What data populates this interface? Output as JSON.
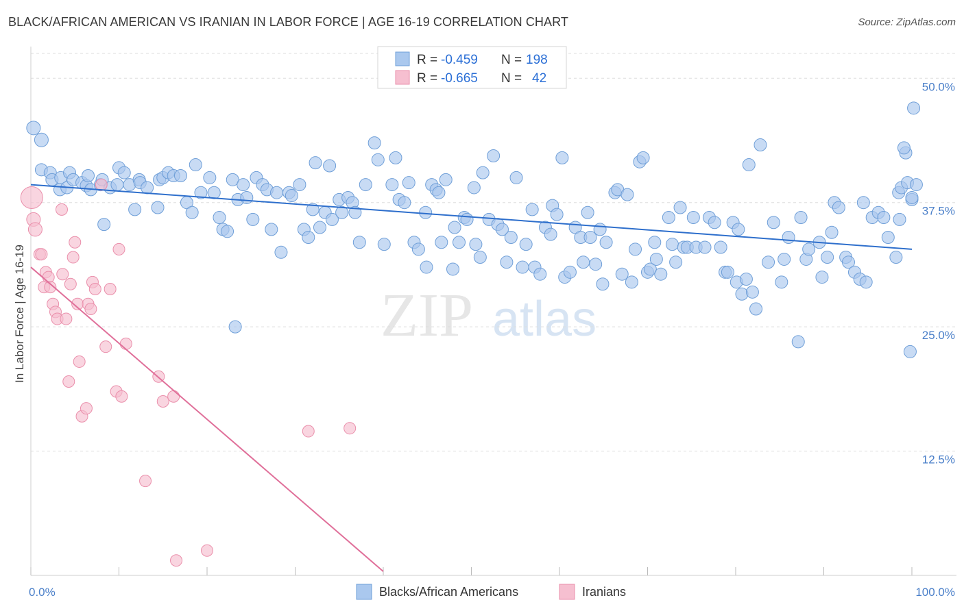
{
  "header": {
    "title": "BLACK/AFRICAN AMERICAN VS IRANIAN IN LABOR FORCE | AGE 16-19 CORRELATION CHART",
    "source": "Source: ZipAtlas.com"
  },
  "watermark": {
    "zip": "ZIP",
    "atlas": "atlas"
  },
  "legend_top": {
    "rows": [
      {
        "r_label": "R =",
        "r_value": "-0.459",
        "n_label": "N =",
        "n_value": "198"
      },
      {
        "r_label": "R =",
        "r_value": "-0.665",
        "n_label": "N =",
        "n_value": "42"
      }
    ]
  },
  "colors": {
    "blue_fill": "#aac8ee",
    "blue_stroke": "#6f9fd8",
    "blue_line": "#2e6fcc",
    "pink_fill": "#f6bfd0",
    "pink_stroke": "#ea8fab",
    "pink_line": "#e0709a",
    "tick_label": "#4a7fc9",
    "grid": "#dddddd"
  },
  "chart_data": {
    "type": "scatter",
    "title": "BLACK/AFRICAN AMERICAN VS IRANIAN IN LABOR FORCE | AGE 16-19 CORRELATION CHART",
    "xlabel": "",
    "ylabel": "In Labor Force | Age 16-19",
    "xlim": [
      0,
      100
    ],
    "ylim": [
      0,
      52.5
    ],
    "x_tick_labels": [
      "0.0%",
      "100.0%"
    ],
    "y_ticks": [
      12.5,
      25.0,
      37.5,
      50.0
    ],
    "y_tick_labels": [
      "12.5%",
      "25.0%",
      "37.5%",
      "50.0%"
    ],
    "grid": "horizontal dashed",
    "legend_position": "top-center",
    "series": [
      {
        "name": "Blacks/African Americans",
        "color": "#aac8ee",
        "R": -0.459,
        "N": 198,
        "trend": {
          "x": [
            0,
            100
          ],
          "y": [
            39.3,
            32.8
          ]
        },
        "points": [
          [
            0.3,
            45.0
          ],
          [
            1.2,
            43.8
          ],
          [
            1.2,
            40.8
          ],
          [
            2.2,
            40.5
          ],
          [
            2.4,
            39.8
          ],
          [
            3.3,
            38.8
          ],
          [
            3.4,
            40.0
          ],
          [
            4.1,
            39.0
          ],
          [
            4.4,
            40.5
          ],
          [
            4.8,
            39.8
          ],
          [
            5.8,
            39.5
          ],
          [
            6.3,
            39.2
          ],
          [
            6.5,
            40.2
          ],
          [
            6.8,
            38.8
          ],
          [
            7.9,
            39.3
          ],
          [
            8.1,
            39.8
          ],
          [
            8.3,
            35.3
          ],
          [
            9.0,
            39.0
          ],
          [
            9.8,
            39.3
          ],
          [
            10.0,
            41.0
          ],
          [
            10.6,
            40.5
          ],
          [
            11.2,
            39.3
          ],
          [
            11.8,
            36.8
          ],
          [
            12.3,
            39.8
          ],
          [
            12.4,
            39.5
          ],
          [
            13.2,
            39.0
          ],
          [
            14.4,
            37.0
          ],
          [
            14.6,
            39.8
          ],
          [
            15.0,
            40.0
          ],
          [
            15.6,
            40.5
          ],
          [
            16.2,
            40.2
          ],
          [
            17.0,
            40.2
          ],
          [
            17.7,
            37.5
          ],
          [
            18.3,
            36.5
          ],
          [
            18.7,
            41.3
          ],
          [
            19.3,
            38.5
          ],
          [
            20.3,
            40.0
          ],
          [
            20.8,
            38.5
          ],
          [
            21.4,
            36.0
          ],
          [
            21.8,
            34.8
          ],
          [
            22.3,
            34.6
          ],
          [
            22.9,
            39.8
          ],
          [
            23.2,
            25.0
          ],
          [
            23.5,
            37.8
          ],
          [
            24.1,
            39.3
          ],
          [
            24.5,
            38.0
          ],
          [
            25.2,
            35.8
          ],
          [
            25.6,
            40.0
          ],
          [
            26.3,
            39.3
          ],
          [
            26.8,
            38.8
          ],
          [
            27.3,
            34.8
          ],
          [
            27.9,
            38.5
          ],
          [
            28.4,
            32.5
          ],
          [
            29.3,
            38.5
          ],
          [
            29.6,
            38.2
          ],
          [
            30.5,
            39.3
          ],
          [
            31.0,
            34.8
          ],
          [
            31.5,
            34.0
          ],
          [
            32.0,
            36.8
          ],
          [
            32.3,
            41.5
          ],
          [
            32.8,
            35.0
          ],
          [
            33.4,
            36.5
          ],
          [
            33.9,
            41.2
          ],
          [
            34.2,
            35.8
          ],
          [
            35.0,
            37.8
          ],
          [
            35.3,
            36.5
          ],
          [
            36.0,
            38.0
          ],
          [
            36.5,
            37.5
          ],
          [
            36.8,
            36.5
          ],
          [
            37.3,
            33.5
          ],
          [
            38.0,
            39.3
          ],
          [
            39.0,
            43.5
          ],
          [
            39.4,
            41.8
          ],
          [
            40.1,
            33.3
          ],
          [
            41.0,
            39.3
          ],
          [
            41.4,
            42.0
          ],
          [
            41.8,
            37.8
          ],
          [
            42.4,
            37.5
          ],
          [
            42.9,
            39.5
          ],
          [
            43.5,
            33.5
          ],
          [
            44.0,
            32.8
          ],
          [
            44.8,
            36.5
          ],
          [
            44.9,
            31.0
          ],
          [
            45.5,
            39.3
          ],
          [
            46.0,
            38.8
          ],
          [
            46.3,
            38.5
          ],
          [
            46.6,
            33.5
          ],
          [
            47.1,
            39.8
          ],
          [
            47.9,
            30.8
          ],
          [
            48.1,
            35.0
          ],
          [
            48.6,
            33.5
          ],
          [
            49.2,
            36.0
          ],
          [
            49.5,
            35.8
          ],
          [
            50.3,
            39.0
          ],
          [
            50.5,
            33.3
          ],
          [
            51.0,
            32.0
          ],
          [
            51.3,
            40.5
          ],
          [
            52.0,
            35.8
          ],
          [
            52.5,
            42.2
          ],
          [
            53.0,
            35.3
          ],
          [
            53.5,
            34.8
          ],
          [
            54.0,
            31.5
          ],
          [
            54.5,
            34.0
          ],
          [
            55.1,
            40.0
          ],
          [
            55.8,
            31.0
          ],
          [
            56.2,
            33.3
          ],
          [
            56.9,
            36.8
          ],
          [
            57.2,
            31.0
          ],
          [
            57.8,
            30.3
          ],
          [
            58.4,
            35.0
          ],
          [
            59.0,
            34.3
          ],
          [
            59.2,
            37.2
          ],
          [
            59.7,
            36.3
          ],
          [
            60.3,
            42.0
          ],
          [
            60.6,
            30.0
          ],
          [
            61.2,
            30.5
          ],
          [
            61.8,
            35.0
          ],
          [
            62.4,
            34.0
          ],
          [
            62.7,
            31.5
          ],
          [
            63.2,
            36.5
          ],
          [
            63.5,
            34.0
          ],
          [
            64.1,
            31.3
          ],
          [
            64.6,
            34.8
          ],
          [
            64.9,
            29.3
          ],
          [
            65.3,
            33.5
          ],
          [
            66.3,
            38.5
          ],
          [
            66.6,
            38.8
          ],
          [
            67.1,
            30.3
          ],
          [
            67.7,
            38.3
          ],
          [
            68.2,
            29.5
          ],
          [
            68.6,
            32.8
          ],
          [
            69.1,
            41.6
          ],
          [
            69.5,
            42.0
          ],
          [
            70.0,
            30.5
          ],
          [
            70.3,
            30.8
          ],
          [
            70.8,
            33.5
          ],
          [
            71.0,
            31.8
          ],
          [
            71.5,
            30.3
          ],
          [
            72.4,
            36.0
          ],
          [
            72.8,
            33.3
          ],
          [
            73.2,
            31.5
          ],
          [
            73.7,
            37.0
          ],
          [
            74.1,
            33.0
          ],
          [
            74.5,
            33.0
          ],
          [
            75.2,
            36.0
          ],
          [
            75.5,
            33.0
          ],
          [
            76.5,
            33.0
          ],
          [
            77.0,
            36.0
          ],
          [
            77.6,
            35.5
          ],
          [
            78.3,
            33.0
          ],
          [
            78.8,
            30.5
          ],
          [
            79.1,
            30.5
          ],
          [
            79.7,
            35.5
          ],
          [
            80.1,
            29.5
          ],
          [
            80.3,
            34.8
          ],
          [
            80.7,
            28.3
          ],
          [
            81.2,
            29.8
          ],
          [
            81.5,
            41.3
          ],
          [
            81.9,
            28.5
          ],
          [
            82.3,
            26.8
          ],
          [
            82.8,
            43.3
          ],
          [
            83.7,
            31.5
          ],
          [
            84.3,
            35.5
          ],
          [
            85.2,
            29.5
          ],
          [
            85.5,
            31.8
          ],
          [
            86.0,
            34.0
          ],
          [
            87.1,
            23.5
          ],
          [
            87.4,
            36.0
          ],
          [
            88.0,
            31.8
          ],
          [
            88.3,
            32.8
          ],
          [
            89.5,
            33.5
          ],
          [
            89.8,
            30.0
          ],
          [
            90.4,
            32.0
          ],
          [
            90.9,
            34.5
          ],
          [
            91.2,
            37.5
          ],
          [
            91.7,
            37.0
          ],
          [
            92.5,
            32.0
          ],
          [
            92.8,
            31.5
          ],
          [
            93.5,
            30.5
          ],
          [
            94.1,
            29.8
          ],
          [
            94.5,
            37.5
          ],
          [
            94.8,
            29.5
          ],
          [
            95.5,
            36.0
          ],
          [
            96.2,
            36.5
          ],
          [
            96.8,
            36.0
          ],
          [
            97.3,
            34.0
          ],
          [
            98.2,
            32.0
          ],
          [
            98.5,
            38.5
          ],
          [
            98.8,
            39.0
          ],
          [
            99.3,
            42.5
          ],
          [
            99.5,
            39.5
          ],
          [
            100.0,
            37.8
          ],
          [
            99.8,
            22.5
          ],
          [
            100.0,
            38.0
          ],
          [
            100.2,
            47.0
          ],
          [
            99.1,
            43.0
          ],
          [
            100.5,
            39.3
          ],
          [
            98.6,
            35.8
          ]
        ]
      },
      {
        "name": "Iranians",
        "color": "#f6bfd0",
        "R": -0.665,
        "N": 42,
        "trend": {
          "x": [
            0,
            40
          ],
          "y": [
            31.0,
            0.4
          ]
        },
        "points": [
          [
            0.1,
            38.0
          ],
          [
            0.3,
            35.8
          ],
          [
            0.5,
            34.8
          ],
          [
            1.0,
            32.3
          ],
          [
            1.2,
            32.3
          ],
          [
            1.5,
            29.0
          ],
          [
            1.7,
            30.5
          ],
          [
            2.0,
            30.0
          ],
          [
            2.2,
            29.0
          ],
          [
            2.5,
            27.3
          ],
          [
            2.8,
            26.5
          ],
          [
            3.0,
            25.8
          ],
          [
            3.5,
            36.8
          ],
          [
            3.6,
            30.3
          ],
          [
            4.0,
            25.8
          ],
          [
            4.3,
            19.5
          ],
          [
            4.5,
            29.3
          ],
          [
            4.8,
            32.0
          ],
          [
            5.0,
            33.5
          ],
          [
            5.3,
            27.3
          ],
          [
            5.5,
            21.5
          ],
          [
            5.8,
            16.0
          ],
          [
            6.3,
            16.8
          ],
          [
            6.5,
            27.3
          ],
          [
            6.8,
            26.8
          ],
          [
            7.0,
            29.5
          ],
          [
            7.3,
            28.8
          ],
          [
            8.5,
            23.0
          ],
          [
            9.0,
            28.8
          ],
          [
            9.7,
            18.5
          ],
          [
            10.0,
            32.8
          ],
          [
            10.3,
            18.0
          ],
          [
            10.8,
            23.3
          ],
          [
            13.0,
            9.5
          ],
          [
            14.5,
            20.0
          ],
          [
            15.0,
            17.5
          ],
          [
            16.2,
            18.0
          ],
          [
            16.5,
            1.5
          ],
          [
            20.0,
            2.5
          ],
          [
            31.5,
            14.5
          ],
          [
            36.2,
            14.8
          ],
          [
            8.0,
            39.3
          ]
        ]
      }
    ]
  }
}
